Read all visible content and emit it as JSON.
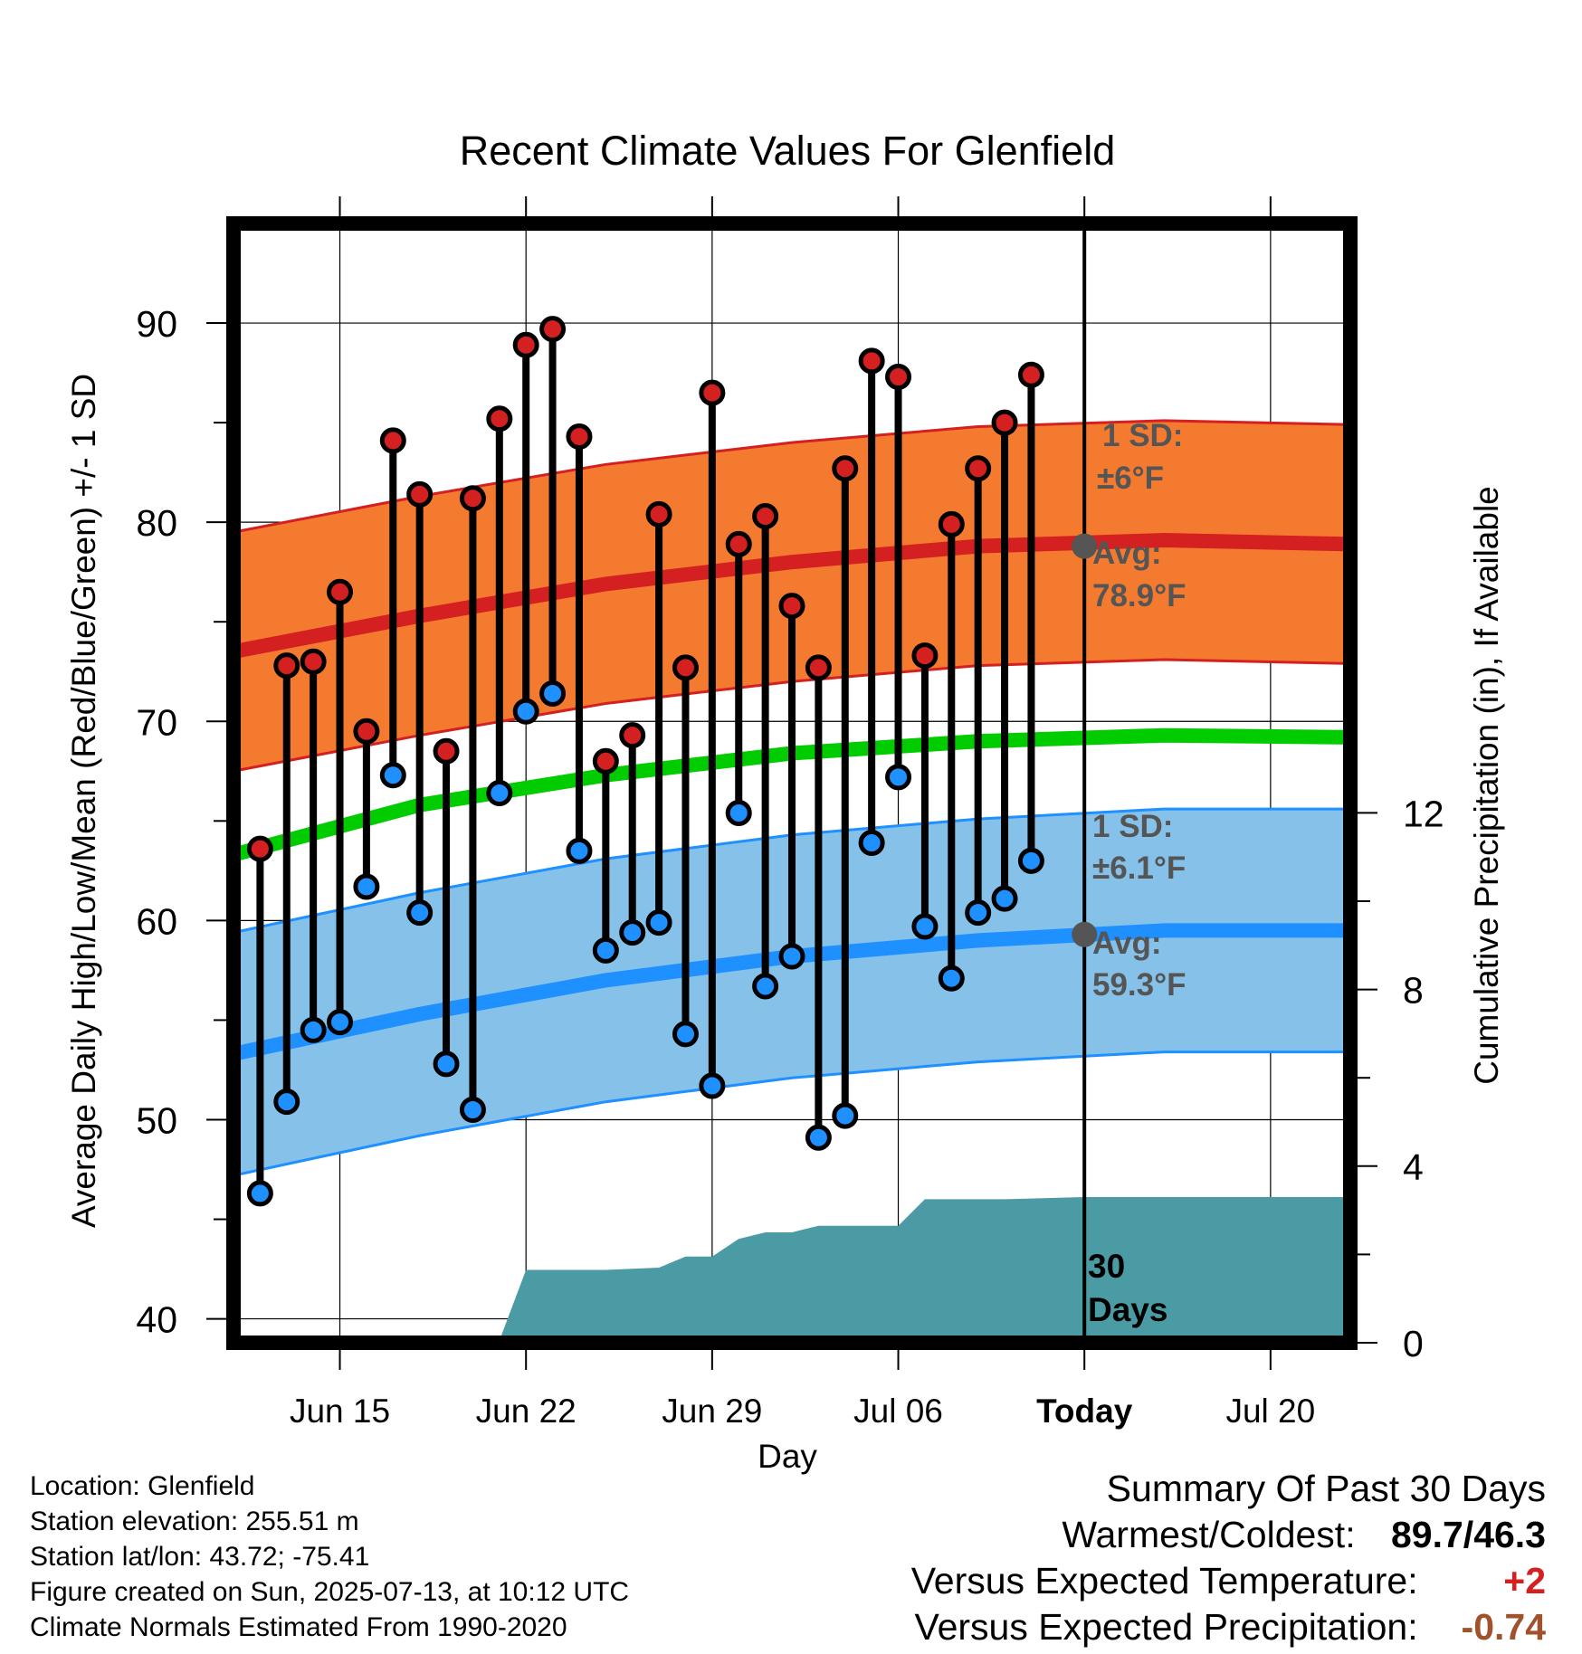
{
  "chart_data": {
    "type": "line",
    "title": "Recent Climate Values For Glenfield",
    "xlabel": "Day",
    "ylabel": "Average Daily High/Low/Mean (Red/Blue/Green) +/- 1 SD",
    "y2label": "Cumulative Precipitation (in), If Available",
    "x_tick_labels": [
      "Jun 15",
      "Jun 22",
      "Jun 29",
      "Jul 06",
      "Today",
      "Jul 20"
    ],
    "x_ticks": [
      "2025-06-15",
      "2025-06-22",
      "2025-06-29",
      "2025-07-06",
      "2025-07-13",
      "2025-07-20"
    ],
    "xlim": [
      "2025-06-11",
      "2025-07-23"
    ],
    "y_ticks": [
      40,
      50,
      60,
      70,
      80,
      90
    ],
    "ylim": [
      38.8,
      95
    ],
    "y2_ticks": [
      0,
      4,
      8,
      12
    ],
    "grid": true,
    "days": [
      "2025-06-12",
      "2025-06-13",
      "2025-06-14",
      "2025-06-15",
      "2025-06-16",
      "2025-06-17",
      "2025-06-18",
      "2025-06-19",
      "2025-06-20",
      "2025-06-21",
      "2025-06-22",
      "2025-06-23",
      "2025-06-24",
      "2025-06-25",
      "2025-06-26",
      "2025-06-27",
      "2025-06-28",
      "2025-06-29",
      "2025-06-30",
      "2025-07-01",
      "2025-07-02",
      "2025-07-03",
      "2025-07-04",
      "2025-07-05",
      "2025-07-06",
      "2025-07-07",
      "2025-07-08",
      "2025-07-09",
      "2025-07-10",
      "2025-07-11",
      "2025-07-12"
    ],
    "series": [
      {
        "name": "Daily High",
        "color": "#d42020",
        "values": [
          63.6,
          72.8,
          73.0,
          76.5,
          69.5,
          84.1,
          81.4,
          68.5,
          81.2,
          85.2,
          88.9,
          89.7,
          84.3,
          68.0,
          69.3,
          80.4,
          72.7,
          86.5,
          78.9,
          80.3,
          75.8,
          72.7,
          82.7,
          88.1,
          87.3,
          73.3,
          79.9,
          82.7,
          85.0,
          87.4,
          null
        ]
      },
      {
        "name": "Daily Low",
        "color": "#1e90ff",
        "values": [
          46.3,
          50.9,
          54.5,
          54.9,
          61.7,
          67.3,
          60.4,
          52.8,
          50.5,
          66.4,
          70.5,
          71.4,
          63.5,
          58.5,
          59.4,
          59.9,
          54.3,
          51.7,
          65.4,
          56.7,
          58.2,
          49.1,
          50.2,
          63.9,
          67.2,
          59.7,
          57.1,
          60.4,
          61.1,
          63.0,
          null
        ]
      }
    ],
    "normals": {
      "dates": [
        "2025-06-11",
        "2025-06-18",
        "2025-06-25",
        "2025-07-02",
        "2025-07-09",
        "2025-07-16",
        "2025-07-23"
      ],
      "high_avg": [
        73.5,
        75.3,
        76.9,
        78.0,
        78.8,
        79.1,
        78.9
      ],
      "high_sd": 6,
      "low_avg": [
        53.3,
        55.3,
        57.0,
        58.2,
        59.0,
        59.5,
        59.5
      ],
      "low_sd": 6.1,
      "mean_avg": [
        63.3,
        65.8,
        67.3,
        68.4,
        69.0,
        69.3,
        69.2
      ],
      "high_color": "#f47a30",
      "low_color": "#85c1e8",
      "mean_color": "#00cc00"
    },
    "precipitation": {
      "color": "#4a9ba4",
      "dates": [
        "2025-06-11",
        "2025-06-18",
        "2025-06-20",
        "2025-06-21",
        "2025-06-22",
        "2025-06-25",
        "2025-06-27",
        "2025-06-28",
        "2025-06-29",
        "2025-06-30",
        "2025-07-01",
        "2025-07-02",
        "2025-07-03",
        "2025-07-04",
        "2025-07-05",
        "2025-07-06",
        "2025-07-07",
        "2025-07-10",
        "2025-07-13",
        "2025-07-23"
      ],
      "values": [
        0,
        0,
        0.05,
        0.05,
        1.65,
        1.65,
        1.7,
        1.95,
        1.95,
        2.35,
        2.5,
        2.5,
        2.65,
        2.65,
        2.65,
        2.65,
        3.25,
        3.25,
        3.3,
        3.3
      ]
    },
    "annotations": {
      "high_sd_label": "1 SD:",
      "high_sd_value": "±6°F",
      "high_avg_label": "Avg:",
      "high_avg_value": "78.9°F",
      "low_sd_label": "1 SD:",
      "low_sd_value": "±6.1°F",
      "low_avg_label": "Avg:",
      "low_avg_value": "59.3°F",
      "period_number": "30",
      "period_unit": "Days"
    }
  },
  "info": {
    "location": "Location: Glenfield",
    "elevation": "Station elevation: 255.51 m",
    "latlon": "Station lat/lon: 43.72; -75.41",
    "created": "Figure created on Sun, 2025-07-13, at 10:12 UTC",
    "normals": "Climate Normals Estimated From 1990-2020"
  },
  "summary": {
    "title": "Summary Of Past 30 Days",
    "warmest_label": "Warmest/Coldest:",
    "warmest_value": "89.7/46.3",
    "temp_label": "Versus Expected Temperature:",
    "temp_value": "+2",
    "temp_color": "#d42020",
    "precip_label": "Versus Expected Precipitation:",
    "precip_value": "-0.74",
    "precip_color": "#a0522d"
  }
}
